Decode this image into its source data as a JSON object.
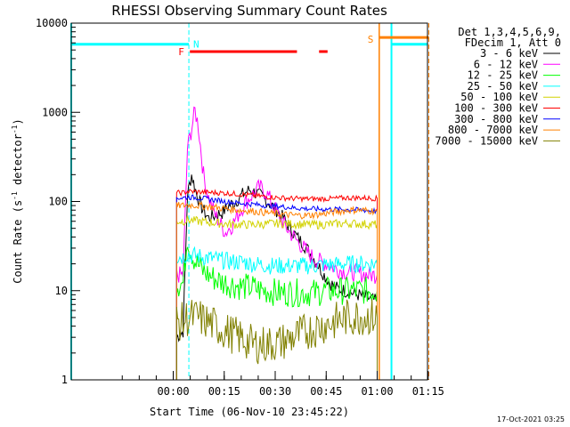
{
  "chart_data": {
    "type": "line",
    "title": "RHESSI Observing Summary Count Rates",
    "xlabel": "Start Time (06-Nov-10 23:45:22)",
    "ylabel": "Count Rate (s",
    "ylabel_sup1": "-1",
    "ylabel_mid": " detector",
    "ylabel_sup2": "-1",
    "ylabel_end": ")",
    "yscale": "log",
    "xlim": [
      -15.4,
      89.4
    ],
    "ylim": [
      1,
      10000
    ],
    "x_unit": "minutes after 06-Nov-10 23:45:22",
    "x_ticks": [
      {
        "value": 14.6,
        "label": "00:00"
      },
      {
        "value": 29.6,
        "label": "00:15"
      },
      {
        "value": 44.6,
        "label": "00:30"
      },
      {
        "value": 59.6,
        "label": "00:45"
      },
      {
        "value": 74.6,
        "label": "01:00"
      },
      {
        "value": 89.6,
        "label": "01:15"
      }
    ],
    "y_ticks": [
      {
        "value": 1,
        "label": "1"
      },
      {
        "value": 10,
        "label": "10"
      },
      {
        "value": 100,
        "label": "100"
      },
      {
        "value": 1000,
        "label": "1000"
      },
      {
        "value": 10000,
        "label": "10000"
      }
    ],
    "legend": {
      "placement": "right",
      "header": [
        "Det 1,3,4,5,6,9,",
        "FDecim 1, Att 0"
      ],
      "entries": [
        {
          "label": "3 - 6 keV",
          "color": "#000000"
        },
        {
          "label": "6 - 12 keV",
          "color": "#ff00ff"
        },
        {
          "label": "12 - 25 keV",
          "color": "#00ff00"
        },
        {
          "label": "25 - 50 keV",
          "color": "#00ffff"
        },
        {
          "label": "50 - 100 keV",
          "color": "#d2d200"
        },
        {
          "label": "100 - 300 keV",
          "color": "#ff0000"
        },
        {
          "label": "300 - 800 keV",
          "color": "#0000ff"
        },
        {
          "label": "800 - 7000 keV",
          "color": "#ff8000"
        },
        {
          "label": "7000 - 15000 keV",
          "color": "#808000"
        }
      ]
    },
    "series": [
      {
        "name": "3 - 6 keV",
        "color": "#000000",
        "points": [
          [
            15.6,
            3
          ],
          [
            17.5,
            3.5
          ],
          [
            18.8,
            120
          ],
          [
            20,
            200
          ],
          [
            21.5,
            120
          ],
          [
            23,
            85
          ],
          [
            25,
            65
          ],
          [
            27,
            70
          ],
          [
            29,
            75
          ],
          [
            31,
            90
          ],
          [
            33,
            100
          ],
          [
            35,
            120
          ],
          [
            37,
            135
          ],
          [
            39,
            125
          ],
          [
            41,
            110
          ],
          [
            43,
            95
          ],
          [
            45,
            80
          ],
          [
            47,
            65
          ],
          [
            49,
            50
          ],
          [
            51,
            40
          ],
          [
            53,
            33
          ],
          [
            55,
            26
          ],
          [
            57,
            20
          ],
          [
            59,
            15
          ],
          [
            61,
            12
          ],
          [
            63,
            10.5
          ],
          [
            65,
            10
          ],
          [
            67,
            9.5
          ],
          [
            69,
            9
          ],
          [
            71,
            8.5
          ],
          [
            73,
            8
          ],
          [
            74.6,
            7.5
          ]
        ]
      },
      {
        "name": "6 - 12 keV",
        "color": "#ff00ff",
        "points": [
          [
            15.6,
            15
          ],
          [
            17.5,
            15
          ],
          [
            18.8,
            400
          ],
          [
            19.8,
            600
          ],
          [
            21,
            1050
          ],
          [
            22,
            700
          ],
          [
            23.5,
            200
          ],
          [
            25,
            110
          ],
          [
            27,
            70
          ],
          [
            29,
            52
          ],
          [
            30,
            45
          ],
          [
            32,
            55
          ],
          [
            34,
            75
          ],
          [
            36,
            100
          ],
          [
            38,
            120
          ],
          [
            40,
            145
          ],
          [
            42,
            125
          ],
          [
            44,
            90
          ],
          [
            46,
            65
          ],
          [
            48,
            50
          ],
          [
            50,
            40
          ],
          [
            52,
            33
          ],
          [
            54,
            27
          ],
          [
            56,
            23
          ],
          [
            58,
            21
          ],
          [
            60,
            20
          ],
          [
            62,
            18
          ],
          [
            64,
            17
          ],
          [
            66,
            16
          ],
          [
            68,
            16
          ],
          [
            70,
            15.5
          ],
          [
            72,
            15
          ],
          [
            74.6,
            15
          ]
        ]
      },
      {
        "name": "12 - 25 keV",
        "color": "#00ff00",
        "points": [
          [
            15.6,
            12
          ],
          [
            17.5,
            12
          ],
          [
            18.8,
            42
          ],
          [
            19.5,
            30
          ],
          [
            21,
            22
          ],
          [
            23,
            17
          ],
          [
            25,
            15
          ],
          [
            27,
            13.5
          ],
          [
            29,
            12.5
          ],
          [
            31,
            12
          ],
          [
            33,
            11.5
          ],
          [
            35,
            11
          ],
          [
            37,
            11
          ],
          [
            39,
            10.5
          ],
          [
            41,
            10
          ],
          [
            43,
            10
          ],
          [
            45,
            9.5
          ],
          [
            47,
            9.5
          ],
          [
            49,
            9.5
          ],
          [
            51,
            9.5
          ],
          [
            53,
            9.5
          ],
          [
            55,
            9.5
          ],
          [
            57,
            9.5
          ],
          [
            59,
            10
          ],
          [
            61,
            10
          ],
          [
            63,
            10
          ],
          [
            65,
            10
          ],
          [
            67,
            10
          ],
          [
            69,
            10
          ],
          [
            71,
            10
          ],
          [
            73,
            10
          ],
          [
            74.6,
            10
          ]
        ]
      },
      {
        "name": "25 - 50 keV",
        "color": "#00ffff",
        "points": [
          [
            15.6,
            24
          ],
          [
            17.5,
            24
          ],
          [
            18.8,
            26
          ],
          [
            20,
            25
          ],
          [
            23,
            24
          ],
          [
            26,
            23
          ],
          [
            29,
            22
          ],
          [
            32,
            21
          ],
          [
            35,
            21
          ],
          [
            38,
            20
          ],
          [
            41,
            19.5
          ],
          [
            44,
            19
          ],
          [
            47,
            19
          ],
          [
            50,
            19
          ],
          [
            53,
            19
          ],
          [
            56,
            19
          ],
          [
            59,
            19.5
          ],
          [
            62,
            19.5
          ],
          [
            65,
            20
          ],
          [
            68,
            20
          ],
          [
            71,
            20
          ],
          [
            74.6,
            20
          ]
        ]
      },
      {
        "name": "50 - 100 keV",
        "color": "#d2d200",
        "points": [
          [
            15.6,
            60
          ],
          [
            17.5,
            60
          ],
          [
            18.8,
            62
          ],
          [
            22,
            60
          ],
          [
            26,
            58
          ],
          [
            30,
            56
          ],
          [
            34,
            55
          ],
          [
            38,
            55
          ],
          [
            42,
            56
          ],
          [
            46,
            57
          ],
          [
            50,
            56
          ],
          [
            54,
            55
          ],
          [
            58,
            55
          ],
          [
            62,
            56
          ],
          [
            66,
            57
          ],
          [
            70,
            56
          ],
          [
            74.6,
            55
          ]
        ]
      },
      {
        "name": "100 - 300 keV",
        "color": "#ff0000",
        "points": [
          [
            15.6,
            125
          ],
          [
            17.5,
            125
          ],
          [
            18.8,
            130
          ],
          [
            22,
            128
          ],
          [
            26,
            126
          ],
          [
            30,
            124
          ],
          [
            34,
            121
          ],
          [
            38,
            117
          ],
          [
            42,
            113
          ],
          [
            46,
            110
          ],
          [
            50,
            108
          ],
          [
            54,
            107
          ],
          [
            58,
            107
          ],
          [
            62,
            108
          ],
          [
            66,
            110
          ],
          [
            70,
            110
          ],
          [
            74.6,
            108
          ]
        ]
      },
      {
        "name": "300 - 800 keV",
        "color": "#0000ff",
        "points": [
          [
            15.6,
            110
          ],
          [
            17.5,
            110
          ],
          [
            18.8,
            112
          ],
          [
            22,
            110
          ],
          [
            26,
            105
          ],
          [
            30,
            100
          ],
          [
            34,
            96
          ],
          [
            38,
            93
          ],
          [
            42,
            90
          ],
          [
            46,
            88
          ],
          [
            50,
            85
          ],
          [
            54,
            83
          ],
          [
            58,
            82
          ],
          [
            62,
            82
          ],
          [
            66,
            81
          ],
          [
            70,
            80
          ],
          [
            74.6,
            78
          ]
        ]
      },
      {
        "name": "800 - 7000 keV",
        "color": "#ff8000",
        "points": [
          [
            15.6,
            90
          ],
          [
            17.5,
            90
          ],
          [
            18.8,
            92
          ],
          [
            22,
            90
          ],
          [
            26,
            87
          ],
          [
            30,
            83
          ],
          [
            34,
            80
          ],
          [
            38,
            78
          ],
          [
            42,
            75
          ],
          [
            46,
            72
          ],
          [
            50,
            70
          ],
          [
            54,
            70
          ],
          [
            58,
            72
          ],
          [
            62,
            76
          ],
          [
            66,
            80
          ],
          [
            70,
            80
          ],
          [
            74.6,
            78
          ]
        ]
      },
      {
        "name": "7000 - 15000 keV",
        "color": "#808000",
        "points": [
          [
            15.6,
            4.5
          ],
          [
            17.5,
            4.5
          ],
          [
            18.8,
            5
          ],
          [
            22,
            5
          ],
          [
            26,
            4.2
          ],
          [
            30,
            3.5
          ],
          [
            34,
            3
          ],
          [
            38,
            2.5
          ],
          [
            42,
            2.5
          ],
          [
            46,
            2.6
          ],
          [
            50,
            3
          ],
          [
            54,
            3.5
          ],
          [
            58,
            4
          ],
          [
            62,
            4.5
          ],
          [
            66,
            5
          ],
          [
            70,
            5.2
          ],
          [
            74.6,
            5
          ]
        ]
      }
    ],
    "annotations": {
      "night_N": {
        "label": "N",
        "color": "#00ffff",
        "level": 5800,
        "segments": [
          [
            -15.4,
            19.2
          ],
          [
            78.8,
            89.4
          ]
        ],
        "vlines": [
          -15.4,
          19.2,
          78.8,
          92.3
        ]
      },
      "flare_F": {
        "label": "F",
        "color": "#ff0000",
        "level": 4800,
        "segments": [
          [
            19.5,
            51
          ],
          [
            57.5,
            60
          ]
        ]
      },
      "saa_S": {
        "label": "S",
        "color": "#ff8000",
        "level": 6900,
        "segments": [
          [
            75.2,
            89.8
          ]
        ],
        "vlines": [
          75.2,
          89.8
        ]
      }
    },
    "footer": "17-Oct-2021 03:25"
  }
}
